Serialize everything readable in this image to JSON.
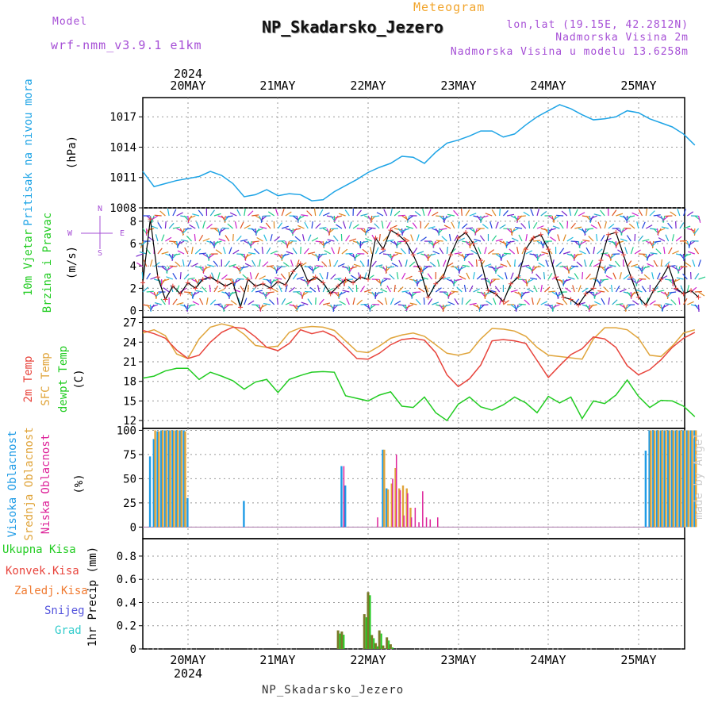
{
  "header": {
    "model_label": "Model",
    "model_name": "wrf-nmm_v3.9.1 e1km",
    "product": "Meteogram",
    "station": "NP_Skadarsko_Jezero",
    "lonlat": "lon,lat (19.15E, 42.2812N)",
    "altitude": "Nadmorska Visina 2m",
    "model_altitude": "Nadmorska Visina u modelu 13.6258m",
    "footer_station": "NP_Skadarsko_Jezero",
    "watermark": "made by Angel"
  },
  "colors": {
    "pressure": "#1ea4e6",
    "temp2m": "#e8443c",
    "sfc_temp": "#e0a43a",
    "dewpt": "#22cc22",
    "cloud_high": "#1e9be6",
    "cloud_mid": "#e0a43a",
    "cloud_low": "#dd2299",
    "precip_total": "#22cc22",
    "precip_conv": "#e8443c",
    "precip_large": "#f07a30",
    "snow": "#5555dd",
    "hail": "#33cccc",
    "label_purple": "#a64fd6"
  },
  "chart_data": [
    {
      "type": "line",
      "panel": "pressure",
      "ylabel_colored": "Pritisak na nivou mora",
      "ylabel": "(hPa)",
      "yticks": [
        1008,
        1011,
        1014,
        1017
      ],
      "ylim": [
        1008,
        1018.9
      ],
      "x_hours": [
        0,
        3,
        6,
        9,
        12,
        15,
        18,
        21,
        24,
        27,
        30,
        33,
        36,
        39,
        42,
        45,
        48,
        51,
        54,
        57,
        60,
        63,
        66,
        69,
        72,
        75,
        78,
        81,
        84,
        87,
        90,
        93,
        96,
        99,
        102,
        105,
        108,
        111,
        114,
        117,
        120,
        123,
        126,
        129,
        132,
        135,
        138,
        141,
        144,
        147
      ],
      "values": [
        1011.6,
        1010.1,
        1010.4,
        1010.7,
        1010.9,
        1011.1,
        1011.6,
        1011.2,
        1010.4,
        1009.1,
        1009.3,
        1009.8,
        1009.2,
        1009.4,
        1009.3,
        1008.7,
        1008.8,
        1009.6,
        1010.2,
        1010.8,
        1011.5,
        1012.0,
        1012.4,
        1013.1,
        1013.0,
        1012.4,
        1013.5,
        1014.4,
        1014.7,
        1015.1,
        1015.6,
        1015.6,
        1015.0,
        1015.3,
        1016.2,
        1017.0,
        1017.6,
        1018.2,
        1017.8,
        1017.2,
        1016.7,
        1016.8,
        1017.0,
        1017.6,
        1017.4,
        1016.8,
        1016.4,
        1016.0,
        1015.3,
        1014.2
      ],
      "grid": true
    },
    {
      "type": "scatter",
      "panel": "wind",
      "ylabel_colored": "10m Vjetar Brzina i Pravac",
      "ylabel": "(m/s)",
      "compass_labels": {
        "n": "N",
        "s": "S",
        "e": "E",
        "w": "W"
      },
      "yticks": [
        0,
        2,
        4,
        6,
        8
      ],
      "ylim": [
        -0.6,
        9.2
      ],
      "speed_x_hours": [
        0,
        2,
        4,
        6,
        8,
        10,
        12,
        14,
        16,
        18,
        20,
        22,
        24,
        26,
        28,
        30,
        32,
        34,
        36,
        38,
        40,
        42,
        44,
        46,
        48,
        50,
        52,
        54,
        56,
        58,
        60,
        62,
        64,
        66,
        68,
        70,
        72,
        74,
        76,
        78,
        80,
        82,
        84,
        86,
        88,
        90,
        92,
        94,
        96,
        98,
        100,
        102,
        104,
        106,
        108,
        110,
        112,
        114,
        116,
        118,
        120,
        122,
        124,
        126,
        128,
        130,
        132,
        134,
        136,
        138,
        140,
        142,
        144,
        146,
        148
      ],
      "speed_values": [
        2.5,
        8.2,
        3.0,
        1.0,
        2.2,
        1.5,
        2.5,
        2.0,
        2.8,
        3.0,
        2.6,
        2.2,
        2.5,
        0.3,
        2.8,
        2.2,
        2.4,
        2.0,
        2.6,
        2.3,
        3.5,
        4.2,
        2.6,
        3.0,
        2.5,
        1.5,
        2.2,
        2.8,
        2.5,
        3.0,
        2.8,
        6.5,
        5.5,
        7.2,
        6.8,
        6.2,
        5.0,
        3.5,
        1.2,
        2.4,
        3.0,
        5.0,
        6.5,
        7.0,
        6.0,
        4.5,
        1.8,
        1.5,
        0.8,
        2.4,
        3.0,
        5.5,
        6.5,
        6.8,
        5.5,
        3.0,
        1.2,
        1.0,
        0.5,
        1.5,
        2.0,
        4.5,
        6.8,
        7.0,
        5.0,
        3.0,
        1.2,
        0.5,
        1.8,
        2.8,
        4.0,
        2.0,
        1.5,
        1.8,
        1.2
      ],
      "grid": true
    },
    {
      "type": "line",
      "panel": "temperature",
      "ylabels_colored": [
        "2m Temp",
        "SFC Temp",
        "dewpt Temp"
      ],
      "ylabel": "(C)",
      "yticks": [
        12,
        15,
        18,
        21,
        24,
        27
      ],
      "ylim": [
        10.8,
        27.8
      ],
      "x_hours": [
        0,
        3,
        6,
        9,
        12,
        15,
        18,
        21,
        24,
        27,
        30,
        33,
        36,
        39,
        42,
        45,
        48,
        51,
        54,
        57,
        60,
        63,
        66,
        69,
        72,
        75,
        78,
        81,
        84,
        87,
        90,
        93,
        96,
        99,
        102,
        105,
        108,
        111,
        114,
        117,
        120,
        123,
        126,
        129,
        132,
        135,
        138,
        141,
        144,
        147
      ],
      "series": [
        {
          "name": "2m Temp",
          "values": [
            25.8,
            25.3,
            24.6,
            22.8,
            21.5,
            22.0,
            24.0,
            25.5,
            26.3,
            26.1,
            24.8,
            23.2,
            22.7,
            23.8,
            25.9,
            25.3,
            25.7,
            24.9,
            23.2,
            21.5,
            21.4,
            22.3,
            23.6,
            24.4,
            24.6,
            24.3,
            22.4,
            19.0,
            17.2,
            18.4,
            20.5,
            24.2,
            24.4,
            24.2,
            23.8,
            21.2,
            18.6,
            20.4,
            22.1,
            23.0,
            24.8,
            24.5,
            23.2,
            20.4,
            19.0,
            19.8,
            21.3,
            23.2,
            24.6,
            25.5
          ]
        },
        {
          "name": "SFC Temp",
          "values": [
            25.4,
            25.9,
            25.0,
            22.2,
            21.5,
            24.5,
            26.3,
            26.8,
            26.4,
            25.2,
            23.5,
            23.2,
            23.4,
            25.5,
            26.2,
            26.4,
            26.3,
            25.8,
            24.2,
            22.6,
            22.4,
            23.4,
            24.6,
            25.1,
            25.4,
            24.9,
            23.6,
            22.3,
            22.0,
            22.4,
            24.5,
            26.1,
            26.0,
            25.7,
            24.9,
            23.2,
            22.0,
            21.8,
            21.6,
            21.4,
            24.5,
            26.2,
            26.2,
            25.9,
            24.6,
            22.0,
            21.8,
            23.4,
            25.4,
            25.9
          ]
        },
        {
          "name": "dewpt Temp",
          "values": [
            18.5,
            18.8,
            19.6,
            20.0,
            20.0,
            18.3,
            19.4,
            18.8,
            18.1,
            16.8,
            17.9,
            18.3,
            16.3,
            18.3,
            18.9,
            19.4,
            19.5,
            19.4,
            15.8,
            15.4,
            15.0,
            15.9,
            16.4,
            14.2,
            14.0,
            15.6,
            13.2,
            12.0,
            14.5,
            15.6,
            14.1,
            13.6,
            14.4,
            15.6,
            14.7,
            13.2,
            15.7,
            14.7,
            15.6,
            12.3,
            15.0,
            14.6,
            15.9,
            18.2,
            15.7,
            14.0,
            15.1,
            15.0,
            14.2,
            12.6
          ]
        }
      ],
      "grid": true
    },
    {
      "type": "bar",
      "panel": "clouds",
      "ylabels_colored": [
        "Visoka Oblacnost",
        "Srednja Oblacnost",
        "Niska Oblacnost"
      ],
      "ylabel": "(%)",
      "yticks": [
        0,
        25,
        50,
        75,
        100
      ],
      "ylim": [
        0,
        100
      ],
      "series": [
        {
          "name": "Visoka Oblacnost",
          "x_hours": [
            2,
            3,
            4,
            5,
            6,
            7,
            8,
            9,
            10,
            11,
            12,
            27,
            53,
            54,
            64,
            65,
            134,
            135,
            136,
            137,
            138,
            139,
            140,
            141,
            142,
            143,
            144,
            145,
            146,
            147
          ],
          "values": [
            73,
            91,
            99,
            100,
            100,
            100,
            100,
            100,
            100,
            100,
            30,
            27,
            63,
            43,
            80,
            40,
            79,
            100,
            100,
            100,
            100,
            100,
            100,
            100,
            100,
            100,
            100,
            100,
            100,
            100
          ]
        },
        {
          "name": "Srednja Oblacnost",
          "x_hours": [
            3,
            4,
            5,
            6,
            7,
            8,
            9,
            10,
            11,
            64,
            65,
            66,
            67,
            68,
            69,
            70,
            71,
            135,
            136,
            137,
            138,
            139,
            140,
            141,
            142,
            143,
            144,
            145,
            146,
            147
          ],
          "values": [
            100,
            99,
            100,
            100,
            100,
            100,
            100,
            100,
            99,
            80,
            39,
            45,
            61,
            40,
            43,
            40,
            20,
            100,
            100,
            100,
            100,
            100,
            100,
            100,
            100,
            100,
            100,
            100,
            100,
            100
          ]
        },
        {
          "name": "Niska Oblacnost",
          "x_hours": [
            53,
            62,
            66,
            67,
            68,
            69,
            70,
            71,
            72,
            73,
            74,
            75,
            76,
            78
          ],
          "values": [
            63,
            10,
            50,
            75,
            38,
            12,
            35,
            10,
            20,
            5,
            37,
            10,
            8,
            10
          ]
        }
      ],
      "grid": true
    },
    {
      "type": "bar",
      "panel": "precipitation",
      "ylabels_colored": [
        "Ukupna Kisa",
        "Konvek.Kisa",
        "Zaledj.Kisa",
        "Snijeg",
        "Grad"
      ],
      "ylabel": "1hr Precip (mm)",
      "yticks": [
        0,
        0.2,
        0.4,
        0.6,
        0.8
      ],
      "ylim": [
        0,
        0.95
      ],
      "x_hours": [
        52,
        53,
        59,
        60,
        61,
        62,
        63,
        64,
        65,
        66
      ],
      "values": [
        0.16,
        0.15,
        0.3,
        0.49,
        0.12,
        0.05,
        0.16,
        0.03,
        0.1,
        0.04
      ],
      "grid": true
    }
  ],
  "x_axis": {
    "top_year": "2024",
    "bottom_year": "2024",
    "day_labels": [
      "20MAY",
      "21MAY",
      "22MAY",
      "23MAY",
      "24MAY",
      "25MAY"
    ]
  }
}
